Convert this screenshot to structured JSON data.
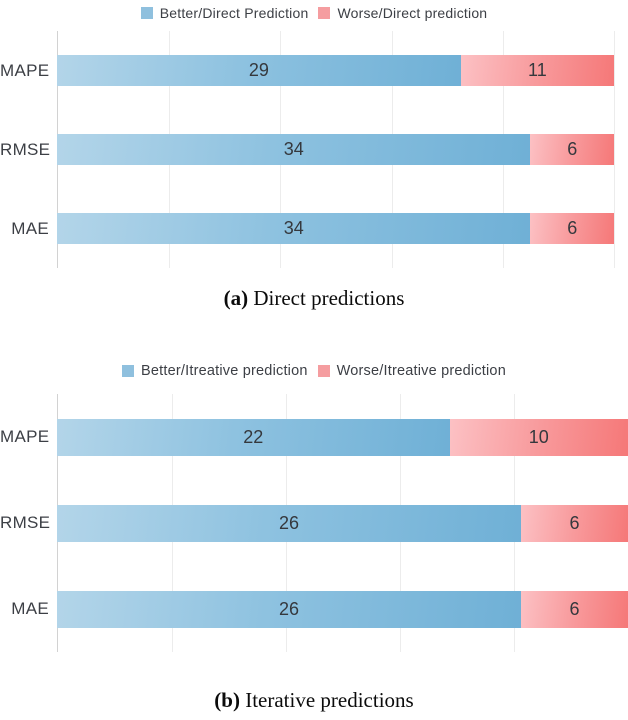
{
  "colors": {
    "better_fill_start": "#b3d5e9",
    "better_fill_end": "#6fb0d6",
    "worse_fill_start": "#fcc1c4",
    "worse_fill_end": "#f57878",
    "legend_better_marker": "#8fc0de",
    "legend_worse_marker": "#f59da0",
    "gridline": "#ececec",
    "axis_line": "#d2d2d2",
    "text": "#3c3f45"
  },
  "chart_data": [
    {
      "id": "direct-predictions",
      "type": "bar",
      "orientation": "horizontal",
      "stacked": true,
      "grid": true,
      "grid_intervals": 5,
      "legend_position": "top",
      "legend": [
        {
          "label": "Better/Direct Prediction",
          "color": "#8fc0de"
        },
        {
          "label": "Worse/Direct prediction",
          "color": "#f59da0"
        }
      ],
      "categories": [
        "MAPE",
        "RMSE",
        "MAE"
      ],
      "series": [
        {
          "name": "Better/Direct Prediction",
          "values": [
            29,
            34,
            34
          ]
        },
        {
          "name": "Worse/Direct prediction",
          "values": [
            11,
            6,
            6
          ]
        }
      ],
      "x_total": 40,
      "caption": {
        "marker": "(a)",
        "text": "Direct predictions"
      }
    },
    {
      "id": "iterative-predictions",
      "type": "bar",
      "orientation": "horizontal",
      "stacked": true,
      "grid": true,
      "grid_intervals": 5,
      "legend_position": "top",
      "legend": [
        {
          "label": "Better/Itreative prediction",
          "color": "#8fc0de"
        },
        {
          "label": "Worse/Itreative prediction",
          "color": "#f59da0"
        }
      ],
      "categories": [
        "MAPE",
        "RMSE",
        "MAE"
      ],
      "series": [
        {
          "name": "Better/Itreative prediction",
          "values": [
            22,
            26,
            26
          ]
        },
        {
          "name": "Worse/Itreative prediction",
          "values": [
            10,
            6,
            6
          ]
        }
      ],
      "x_total": 32,
      "caption": {
        "marker": "(b)",
        "text": "Iterative predictions"
      }
    }
  ]
}
